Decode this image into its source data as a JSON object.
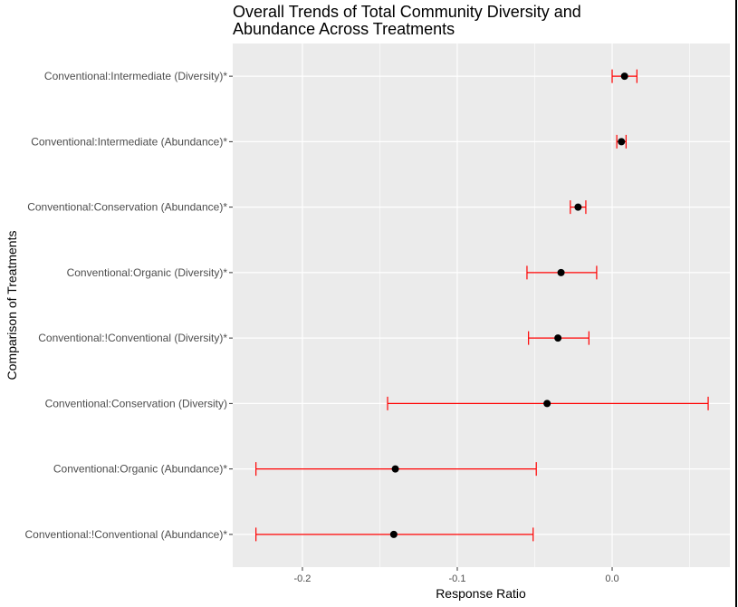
{
  "chart_data": {
    "type": "scatter",
    "title_lines": [
      "Overall Trends of Total Community Diversity and",
      "Abundance Across Treatments"
    ],
    "xlabel": "Response Ratio",
    "ylabel": "Comparison of Treatments",
    "xlim": [
      -0.245,
      0.076
    ],
    "x_ticks": [
      -0.2,
      -0.1,
      0.0
    ],
    "x_tick_labels": [
      "-0.2",
      "-0.1",
      "0.0"
    ],
    "grid": true,
    "colors": {
      "panel": "#ebebeb",
      "grid": "#ffffff",
      "error_bar": "#ff0000",
      "point": "#000000"
    },
    "categories": [
      "Conventional:Intermediate (Diversity)*",
      "Conventional:Intermediate (Abundance)*",
      "Conventional:Conservation (Abundance)*",
      "Conventional:Organic (Diversity)*",
      "Conventional:!Conventional (Diversity)*",
      "Conventional:Conservation (Diversity)",
      "Conventional:Organic (Abundance)*",
      "Conventional:!Conventional (Abundance)*"
    ],
    "estimates": [
      0.008,
      0.006,
      -0.022,
      -0.033,
      -0.035,
      -0.042,
      -0.14,
      -0.141
    ],
    "lower": [
      0.0,
      0.003,
      -0.027,
      -0.055,
      -0.054,
      -0.145,
      -0.23,
      -0.23
    ],
    "upper": [
      0.016,
      0.009,
      -0.017,
      -0.01,
      -0.015,
      0.062,
      -0.049,
      -0.051
    ]
  }
}
